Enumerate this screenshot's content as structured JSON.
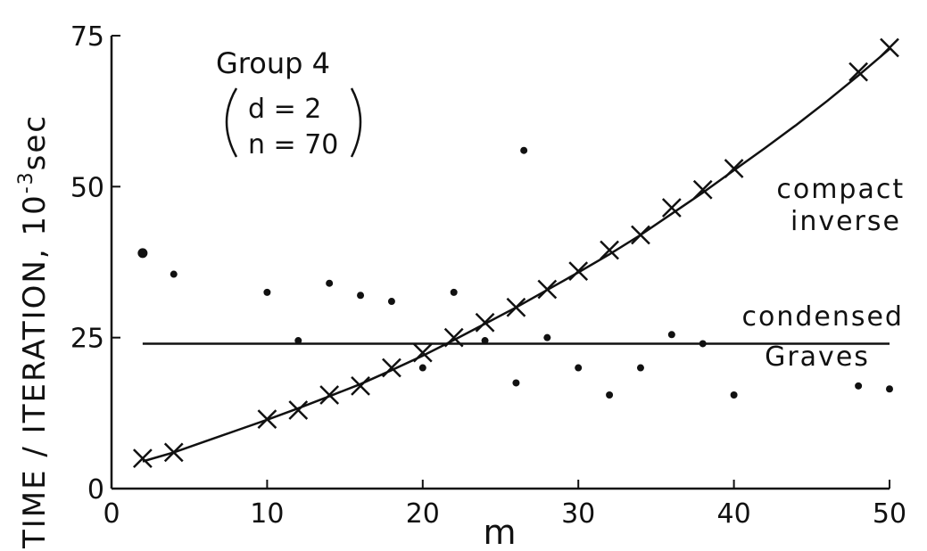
{
  "chart_data": {
    "type": "line",
    "xlabel": "m",
    "ylabel": "TIME / ITERATION, 10",
    "ylabel_exp": "-3",
    "ylabel_unit": "sec",
    "xlim": [
      0,
      50
    ],
    "ylim": [
      0,
      75
    ],
    "x_ticks": [
      0,
      10,
      20,
      30,
      40,
      50
    ],
    "y_ticks": [
      0,
      25,
      50,
      75
    ],
    "grid": false,
    "annotations": {
      "group": "Group 4",
      "param_d": "d = 2",
      "param_n": "n = 70"
    },
    "series": [
      {
        "name": "compact inverse",
        "name_lines": [
          "compact",
          "inverse"
        ],
        "marker": "x",
        "x": [
          2,
          4,
          10,
          12,
          14,
          16,
          18,
          20,
          22,
          24,
          26,
          28,
          30,
          32,
          34,
          36,
          38,
          40,
          48,
          50
        ],
        "y": [
          5,
          6,
          11.5,
          13,
          15.5,
          17,
          20,
          22.5,
          25,
          27.5,
          30,
          33,
          36,
          39.5,
          42,
          46.5,
          49.5,
          53,
          69,
          73
        ]
      },
      {
        "name": "condensed Graves",
        "name_lines": [
          "condensed",
          "Graves"
        ],
        "marker": "none",
        "x": [
          2,
          50
        ],
        "y": [
          24,
          24
        ]
      }
    ],
    "fit_curve": {
      "x": [
        2,
        4,
        6,
        8,
        10,
        12,
        14,
        16,
        18,
        20,
        22,
        24,
        26,
        28,
        30,
        32,
        34,
        36,
        38,
        40,
        42,
        44,
        46,
        48,
        50
      ],
      "y": [
        4.5,
        6,
        7.8,
        9.6,
        11.4,
        13.3,
        15.3,
        17.3,
        19.6,
        22,
        24.6,
        27.3,
        30,
        32.9,
        35.8,
        38.8,
        42,
        45.5,
        49,
        52.7,
        56.4,
        60.2,
        64.2,
        68.4,
        72.8
      ]
    },
    "scatter_dots": {
      "x": [
        2,
        4,
        10,
        14,
        16,
        18,
        22,
        20,
        24,
        26,
        28,
        30,
        32,
        34,
        36,
        38,
        40,
        48,
        50,
        12,
        26.5
      ],
      "y": [
        39,
        35.5,
        32.5,
        34,
        32,
        31,
        32.5,
        20,
        24.5,
        17.5,
        25,
        20,
        15.5,
        20,
        25.5,
        24,
        15.5,
        17,
        16.5,
        24.5,
        56
      ]
    }
  }
}
